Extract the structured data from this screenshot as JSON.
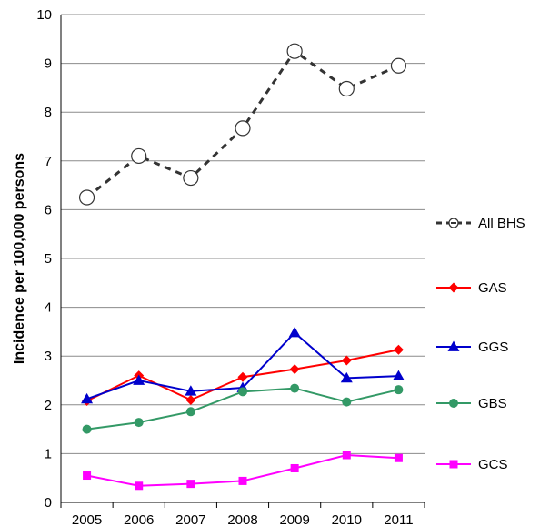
{
  "chart_data": {
    "type": "line",
    "title": "",
    "xlabel": "",
    "ylabel": "Incidence per 100,000 persons",
    "x": [
      "2005",
      "2006",
      "2007",
      "2008",
      "2009",
      "2010",
      "2011"
    ],
    "ylim": [
      0,
      10
    ],
    "yticks": [
      "0",
      "1",
      "2",
      "3",
      "4",
      "5",
      "6",
      "7",
      "8",
      "9",
      "10"
    ],
    "grid": "horizontal",
    "legend_position": "right",
    "series": [
      {
        "name": "All BHS",
        "values": [
          6.25,
          7.1,
          6.65,
          7.67,
          9.25,
          8.48,
          8.95
        ],
        "color": "#333333",
        "marker": "open-circle",
        "line": "dashed"
      },
      {
        "name": "GAS",
        "values": [
          2.08,
          2.6,
          2.1,
          2.57,
          2.73,
          2.91,
          3.13
        ],
        "color": "#ff0000",
        "marker": "diamond",
        "line": "solid"
      },
      {
        "name": "GGS",
        "values": [
          2.12,
          2.5,
          2.28,
          2.35,
          3.48,
          2.55,
          2.59
        ],
        "color": "#0000cc",
        "marker": "triangle",
        "line": "solid"
      },
      {
        "name": "GBS",
        "values": [
          1.5,
          1.64,
          1.86,
          2.27,
          2.34,
          2.06,
          2.31
        ],
        "color": "#339966",
        "marker": "circle",
        "line": "solid"
      },
      {
        "name": "GCS",
        "values": [
          0.55,
          0.34,
          0.38,
          0.44,
          0.7,
          0.97,
          0.91
        ],
        "color": "#ff00ff",
        "marker": "square",
        "line": "solid"
      }
    ]
  }
}
